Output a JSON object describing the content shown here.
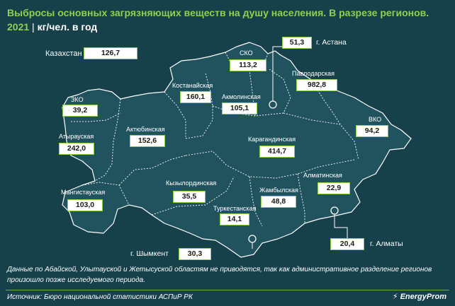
{
  "title": {
    "line1": "Выбросы основных загрязняющих веществ на душу населения. В разрезе регионов.",
    "year": "2021",
    "separator": "|",
    "unit": "кг/чел. в год"
  },
  "kazakhstan": {
    "label": "Казахстан",
    "value": "126,7"
  },
  "regions": {
    "sko": {
      "name": "СКО",
      "value": "113,2"
    },
    "kostanay": {
      "name": "Костанайская",
      "value": "160,1"
    },
    "akmola": {
      "name": "Акмолинская",
      "value": "105,1"
    },
    "pavlodar": {
      "name": "Павлодарская",
      "value": "982,8"
    },
    "zko": {
      "name": "ЗКО",
      "value": "39,2"
    },
    "atyrau": {
      "name": "Атырауская",
      "value": "242,0"
    },
    "aktobe": {
      "name": "Актюбинская",
      "value": "152,6"
    },
    "karaganda": {
      "name": "Карагандинская",
      "value": "414,7"
    },
    "vko": {
      "name": "ВКО",
      "value": "94,2"
    },
    "mangistau": {
      "name": "Мангистауская",
      "value": "103,0"
    },
    "kyzylorda": {
      "name": "Кызылординская",
      "value": "35,5"
    },
    "zhambyl": {
      "name": "Жамбылская",
      "value": "48,8"
    },
    "almaty_reg": {
      "name": "Алматинская",
      "value": "22,9"
    },
    "turkestan": {
      "name": "Туркестанская",
      "value": "14,1"
    }
  },
  "cities": {
    "astana": {
      "name": "г. Астана",
      "value": "51,3"
    },
    "almaty": {
      "name": "г. Алматы",
      "value": "20,4"
    },
    "shymkent": {
      "name": "г. Шымкент",
      "value": "30,3"
    }
  },
  "note": "Данные по Абайской, Улытауской и Жетысуской областям не приводятся, так как административное разделение регионов произошло позже исследуемого периода.",
  "source": "Источник: Бюро национальной статистики АСПиР РК",
  "brand": "EnergyProm",
  "colors": {
    "background": "#16404a",
    "map_fill": "#21535e",
    "accent": "#8fd14f",
    "border": "#ffffff"
  }
}
